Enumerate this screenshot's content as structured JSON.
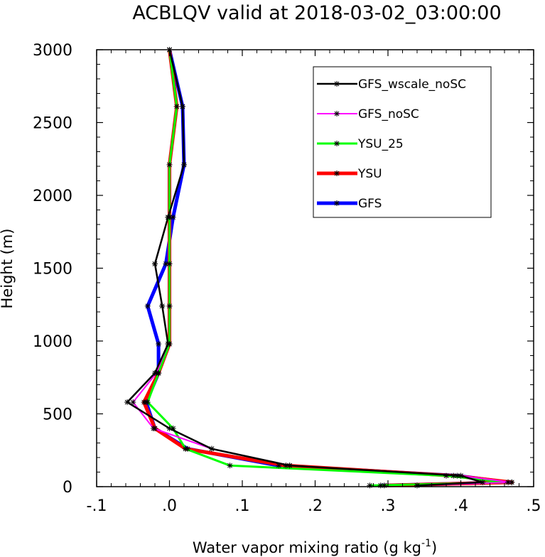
{
  "chart_data": {
    "type": "line",
    "title": "ACBLQV valid at 2018-03-02_03:00:00",
    "xlabel": "Water vapor mixing ratio (g kg",
    "xlabel_sup": "-1",
    "xlabel_end": ")",
    "ylabel": "Height (m)",
    "xlim": [
      -0.1,
      0.5
    ],
    "ylim": [
      0,
      3000
    ],
    "x_ticks": [
      -0.1,
      0.0,
      0.1,
      0.2,
      0.3,
      0.4,
      0.5
    ],
    "x_tick_labels": [
      "-.1",
      ".0",
      ".1",
      ".2",
      ".3",
      ".4",
      ".5"
    ],
    "y_ticks": [
      0,
      500,
      1000,
      1500,
      2000,
      2500,
      3000
    ],
    "y_tick_labels": [
      "0",
      "500",
      "1000",
      "1500",
      "2000",
      "2500",
      "3000"
    ],
    "grid": false,
    "legend_position": "top-right",
    "series": [
      {
        "name": "GFS",
        "color": "#0000ff",
        "width": 5,
        "points": [
          [
            0.29,
            8
          ],
          [
            0.465,
            30
          ],
          [
            0.395,
            75
          ],
          [
            0.15,
            145
          ],
          [
            0.025,
            260
          ],
          [
            -0.02,
            400
          ],
          [
            -0.032,
            580
          ],
          [
            -0.015,
            780
          ],
          [
            -0.015,
            980
          ],
          [
            -0.03,
            1240
          ],
          [
            -0.005,
            1530
          ],
          [
            0.005,
            1850
          ],
          [
            0.02,
            2210
          ],
          [
            0.018,
            2610
          ],
          [
            0.0,
            3000
          ]
        ]
      },
      {
        "name": "YSU",
        "color": "#ff0000",
        "width": 5,
        "points": [
          [
            0.295,
            8
          ],
          [
            0.47,
            30
          ],
          [
            0.39,
            75
          ],
          [
            0.16,
            145
          ],
          [
            0.022,
            260
          ],
          [
            -0.02,
            400
          ],
          [
            -0.035,
            580
          ],
          [
            -0.015,
            780
          ],
          [
            0.0,
            980
          ],
          [
            0.0,
            1240
          ],
          [
            0.0,
            1530
          ],
          [
            0.0,
            1850
          ],
          [
            0.0,
            2210
          ],
          [
            0.01,
            2610
          ],
          [
            0.0,
            3000
          ]
        ]
      },
      {
        "name": "YSU_25",
        "color": "#00ff00",
        "width": 3,
        "points": [
          [
            0.275,
            8
          ],
          [
            0.465,
            30
          ],
          [
            0.38,
            75
          ],
          [
            0.083,
            145
          ],
          [
            0.022,
            260
          ],
          [
            0.005,
            400
          ],
          [
            -0.03,
            580
          ],
          [
            -0.015,
            780
          ],
          [
            0.0,
            980
          ],
          [
            0.0,
            1240
          ],
          [
            0.0,
            1530
          ],
          [
            0.0,
            1850
          ],
          [
            0.0,
            2210
          ],
          [
            0.01,
            2610
          ],
          [
            0.0,
            3000
          ]
        ]
      },
      {
        "name": "GFS_noSC",
        "color": "#ff00ff",
        "width": 2,
        "points": [
          [
            0.34,
            8
          ],
          [
            0.47,
            30
          ],
          [
            0.4,
            75
          ],
          [
            0.165,
            145
          ],
          [
            0.058,
            260
          ],
          [
            -0.022,
            400
          ],
          [
            -0.05,
            580
          ],
          [
            -0.018,
            780
          ],
          [
            -0.002,
            980
          ],
          [
            -0.01,
            1240
          ],
          [
            -0.02,
            1530
          ],
          [
            -0.002,
            1850
          ],
          [
            0.02,
            2210
          ],
          [
            0.018,
            2610
          ],
          [
            0.0,
            3000
          ]
        ]
      },
      {
        "name": "GFS_wscale_noSC",
        "color": "#000000",
        "width": 2.5,
        "points": [
          [
            0.34,
            8
          ],
          [
            0.43,
            30
          ],
          [
            0.4,
            75
          ],
          [
            0.165,
            145
          ],
          [
            0.058,
            260
          ],
          [
            0.0,
            400
          ],
          [
            -0.058,
            580
          ],
          [
            -0.02,
            780
          ],
          [
            -0.002,
            980
          ],
          [
            -0.01,
            1240
          ],
          [
            -0.02,
            1530
          ],
          [
            -0.002,
            1850
          ],
          [
            0.02,
            2210
          ],
          [
            0.018,
            2610
          ],
          [
            0.0,
            3000
          ]
        ]
      }
    ],
    "legend_order": [
      "GFS_wscale_noSC",
      "GFS_noSC",
      "YSU_25",
      "YSU",
      "GFS"
    ]
  }
}
